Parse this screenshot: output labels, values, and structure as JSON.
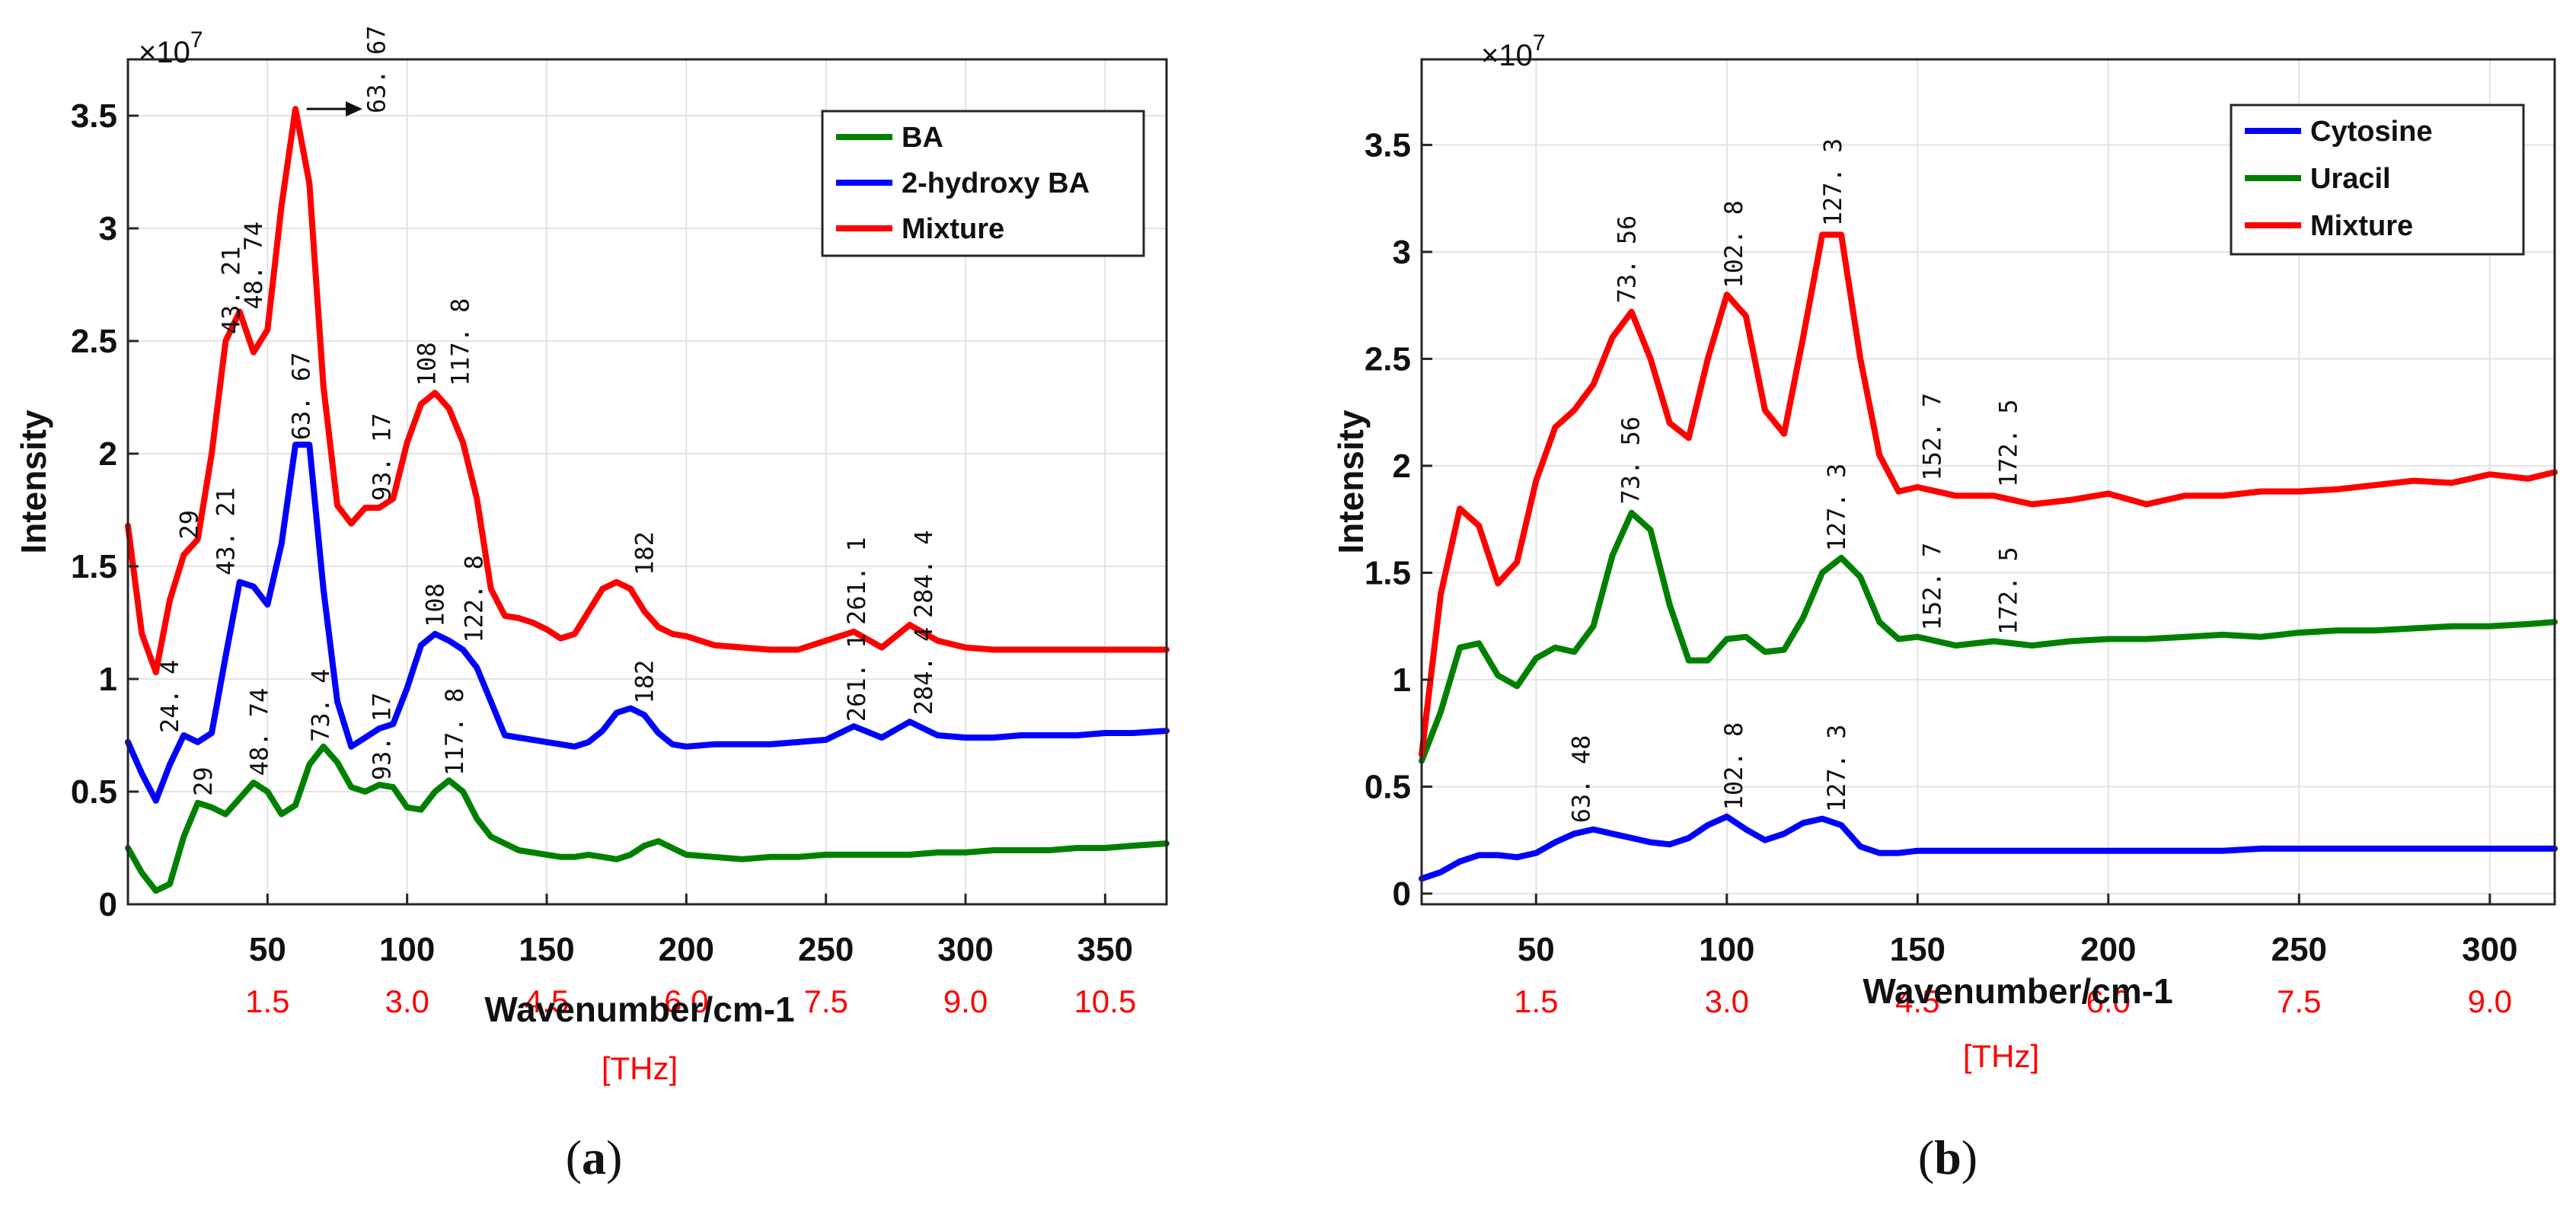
{
  "chart_data": [
    {
      "type": "line",
      "panel": "a",
      "caption_label": "a",
      "xlabel": "Wavenumber/cm-1",
      "ylabel": "Intensity",
      "y_multiplier": "×10",
      "y_exponent": "7",
      "secondary_x_unit": "[THz]",
      "xlim": [
        0,
        372
      ],
      "ylim": [
        0,
        3.75
      ],
      "grid": true,
      "legend_position": "top-right",
      "x_ticks": [
        {
          "value": 50,
          "label": "50"
        },
        {
          "value": 100,
          "label": "100"
        },
        {
          "value": 150,
          "label": "150"
        },
        {
          "value": 200,
          "label": "200"
        },
        {
          "value": 250,
          "label": "250"
        },
        {
          "value": 300,
          "label": "300"
        },
        {
          "value": 350,
          "label": "350"
        }
      ],
      "y_ticks": [
        {
          "value": 0,
          "label": "0"
        },
        {
          "value": 0.5,
          "label": "0.5"
        },
        {
          "value": 1,
          "label": "1"
        },
        {
          "value": 1.5,
          "label": "1.5"
        },
        {
          "value": 2,
          "label": "2"
        },
        {
          "value": 2.5,
          "label": "2.5"
        },
        {
          "value": 3,
          "label": "3"
        },
        {
          "value": 3.5,
          "label": "3.5"
        }
      ],
      "thz_ticks": [
        {
          "value": 50,
          "label": "1.5"
        },
        {
          "value": 100,
          "label": "3.0"
        },
        {
          "value": 150,
          "label": "4.5"
        },
        {
          "value": 200,
          "label": "6.0"
        },
        {
          "value": 250,
          "label": "7.5"
        },
        {
          "value": 300,
          "label": "9.0"
        },
        {
          "value": 350,
          "label": "10.5"
        }
      ],
      "series": [
        {
          "name": "BA",
          "color": "#008000",
          "x": [
            0,
            5,
            10,
            15,
            20,
            25,
            30,
            35,
            40,
            45,
            50,
            55,
            60,
            65,
            70,
            75,
            80,
            85,
            90,
            95,
            100,
            105,
            110,
            115,
            120,
            125,
            130,
            135,
            140,
            145,
            150,
            155,
            160,
            165,
            170,
            175,
            180,
            185,
            190,
            195,
            200,
            210,
            220,
            230,
            240,
            250,
            260,
            270,
            280,
            290,
            300,
            310,
            320,
            330,
            340,
            350,
            360,
            372
          ],
          "y": [
            0.25,
            0.14,
            0.06,
            0.09,
            0.3,
            0.45,
            0.43,
            0.4,
            0.47,
            0.54,
            0.5,
            0.4,
            0.44,
            0.62,
            0.7,
            0.63,
            0.52,
            0.5,
            0.53,
            0.52,
            0.43,
            0.42,
            0.5,
            0.55,
            0.5,
            0.38,
            0.3,
            0.27,
            0.24,
            0.23,
            0.22,
            0.21,
            0.21,
            0.22,
            0.21,
            0.2,
            0.22,
            0.26,
            0.28,
            0.25,
            0.22,
            0.21,
            0.2,
            0.21,
            0.21,
            0.22,
            0.22,
            0.22,
            0.22,
            0.23,
            0.23,
            0.24,
            0.24,
            0.24,
            0.25,
            0.25,
            0.26,
            0.27
          ]
        },
        {
          "name": "2-hydroxy BA",
          "color": "#0000ff",
          "x": [
            0,
            5,
            10,
            15,
            20,
            25,
            30,
            35,
            40,
            45,
            50,
            55,
            60,
            65,
            70,
            75,
            80,
            85,
            90,
            95,
            100,
            105,
            110,
            115,
            120,
            125,
            130,
            135,
            140,
            145,
            150,
            155,
            160,
            165,
            170,
            175,
            180,
            185,
            190,
            195,
            200,
            210,
            220,
            230,
            240,
            250,
            260,
            270,
            280,
            290,
            300,
            310,
            320,
            330,
            340,
            350,
            360,
            372
          ],
          "y": [
            0.72,
            0.58,
            0.46,
            0.62,
            0.75,
            0.72,
            0.76,
            1.1,
            1.43,
            1.41,
            1.33,
            1.6,
            2.04,
            2.04,
            1.4,
            0.9,
            0.7,
            0.74,
            0.78,
            0.8,
            0.96,
            1.15,
            1.2,
            1.17,
            1.13,
            1.05,
            0.9,
            0.75,
            0.74,
            0.73,
            0.72,
            0.71,
            0.7,
            0.72,
            0.77,
            0.85,
            0.87,
            0.84,
            0.76,
            0.71,
            0.7,
            0.71,
            0.71,
            0.71,
            0.72,
            0.73,
            0.79,
            0.74,
            0.81,
            0.75,
            0.74,
            0.74,
            0.75,
            0.75,
            0.75,
            0.76,
            0.76,
            0.77
          ]
        },
        {
          "name": "Mixture",
          "color": "#ff0000",
          "x": [
            0,
            5,
            10,
            15,
            20,
            25,
            30,
            35,
            40,
            45,
            50,
            55,
            60,
            65,
            70,
            75,
            80,
            85,
            90,
            95,
            100,
            105,
            110,
            115,
            120,
            125,
            130,
            135,
            140,
            145,
            150,
            155,
            160,
            165,
            170,
            175,
            180,
            185,
            190,
            195,
            200,
            210,
            220,
            230,
            240,
            250,
            260,
            270,
            280,
            290,
            300,
            310,
            320,
            330,
            340,
            350,
            360,
            372
          ],
          "y": [
            1.68,
            1.2,
            1.03,
            1.35,
            1.55,
            1.62,
            2.0,
            2.5,
            2.63,
            2.45,
            2.55,
            3.1,
            3.53,
            3.2,
            2.3,
            1.77,
            1.69,
            1.76,
            1.76,
            1.8,
            2.05,
            2.22,
            2.27,
            2.2,
            2.05,
            1.8,
            1.4,
            1.28,
            1.27,
            1.25,
            1.22,
            1.18,
            1.2,
            1.3,
            1.4,
            1.43,
            1.4,
            1.3,
            1.23,
            1.2,
            1.19,
            1.15,
            1.14,
            1.13,
            1.13,
            1.17,
            1.21,
            1.14,
            1.24,
            1.17,
            1.14,
            1.13,
            1.13,
            1.13,
            1.13,
            1.13,
            1.13,
            1.13
          ]
        }
      ],
      "annotations": [
        {
          "text": "63. 67",
          "x": 92,
          "y": 3.51
        },
        {
          "text": "43. 21",
          "x": 40,
          "y": 2.53
        },
        {
          "text": "48. 74",
          "x": 48,
          "y": 2.64
        },
        {
          "text": "29",
          "x": 25,
          "y": 1.62
        },
        {
          "text": "24. 4",
          "x": 18,
          "y": 0.76
        },
        {
          "text": "43. 21",
          "x": 38,
          "y": 1.46
        },
        {
          "text": "63. 67",
          "x": 65,
          "y": 2.06
        },
        {
          "text": "108",
          "x": 110,
          "y": 2.3
        },
        {
          "text": "117. 8",
          "x": 122,
          "y": 2.3
        },
        {
          "text": "93. 17",
          "x": 94,
          "y": 1.79
        },
        {
          "text": "182",
          "x": 188,
          "y": 1.46
        },
        {
          "text": "108",
          "x": 113,
          "y": 1.23
        },
        {
          "text": "122. 8",
          "x": 127,
          "y": 1.16
        },
        {
          "text": "261. 1",
          "x": 264,
          "y": 1.24
        },
        {
          "text": "284. 4",
          "x": 288,
          "y": 1.27
        },
        {
          "text": "182",
          "x": 188,
          "y": 0.89
        },
        {
          "text": "261. 1",
          "x": 264,
          "y": 0.81
        },
        {
          "text": "284. 4",
          "x": 288,
          "y": 0.84
        },
        {
          "text": "29",
          "x": 30,
          "y": 0.48
        },
        {
          "text": "48. 74",
          "x": 50,
          "y": 0.57
        },
        {
          "text": "73. 4",
          "x": 72,
          "y": 0.72
        },
        {
          "text": "93. 17",
          "x": 94,
          "y": 0.55
        },
        {
          "text": "117. 8",
          "x": 120,
          "y": 0.57
        }
      ],
      "arrow": {
        "x1": 64,
        "x2": 84,
        "y": 3.53
      }
    },
    {
      "type": "line",
      "panel": "b",
      "caption_label": "b",
      "xlabel": "Wavenumber/cm-1",
      "ylabel": "Intensity",
      "y_multiplier": "×10",
      "y_exponent": "7",
      "secondary_x_unit": "[THz]",
      "xlim": [
        20,
        317
      ],
      "ylim": [
        -0.05,
        3.9
      ],
      "grid": true,
      "legend_position": "top-right",
      "x_ticks": [
        {
          "value": 50,
          "label": "50"
        },
        {
          "value": 100,
          "label": "100"
        },
        {
          "value": 150,
          "label": "150"
        },
        {
          "value": 200,
          "label": "200"
        },
        {
          "value": 250,
          "label": "250"
        },
        {
          "value": 300,
          "label": "300"
        }
      ],
      "y_ticks": [
        {
          "value": 0,
          "label": "0"
        },
        {
          "value": 0.5,
          "label": "0.5"
        },
        {
          "value": 1,
          "label": "1"
        },
        {
          "value": 1.5,
          "label": "1.5"
        },
        {
          "value": 2,
          "label": "2"
        },
        {
          "value": 2.5,
          "label": "2.5"
        },
        {
          "value": 3,
          "label": "3"
        },
        {
          "value": 3.5,
          "label": "3.5"
        }
      ],
      "thz_ticks": [
        {
          "value": 50,
          "label": "1.5"
        },
        {
          "value": 100,
          "label": "3.0"
        },
        {
          "value": 150,
          "label": "4.5"
        },
        {
          "value": 200,
          "label": "6.0"
        },
        {
          "value": 250,
          "label": "7.5"
        },
        {
          "value": 300,
          "label": "9.0"
        }
      ],
      "series": [
        {
          "name": "Cytosine",
          "color": "#0000ff",
          "x": [
            20,
            25,
            30,
            35,
            40,
            45,
            50,
            55,
            60,
            65,
            70,
            75,
            80,
            85,
            90,
            95,
            100,
            105,
            110,
            115,
            120,
            125,
            130,
            135,
            140,
            145,
            150,
            160,
            170,
            180,
            190,
            200,
            210,
            220,
            230,
            240,
            250,
            260,
            270,
            280,
            290,
            300,
            310,
            317
          ],
          "y": [
            0.07,
            0.1,
            0.15,
            0.18,
            0.18,
            0.17,
            0.19,
            0.24,
            0.28,
            0.3,
            0.28,
            0.26,
            0.24,
            0.23,
            0.26,
            0.32,
            0.36,
            0.3,
            0.25,
            0.28,
            0.33,
            0.35,
            0.32,
            0.22,
            0.19,
            0.19,
            0.2,
            0.2,
            0.2,
            0.2,
            0.2,
            0.2,
            0.2,
            0.2,
            0.2,
            0.21,
            0.21,
            0.21,
            0.21,
            0.21,
            0.21,
            0.21,
            0.21,
            0.21
          ]
        },
        {
          "name": "Uracil",
          "color": "#008000",
          "x": [
            20,
            25,
            30,
            35,
            40,
            45,
            50,
            55,
            60,
            65,
            70,
            75,
            80,
            85,
            90,
            95,
            100,
            105,
            110,
            115,
            120,
            125,
            130,
            135,
            140,
            145,
            150,
            160,
            170,
            180,
            190,
            200,
            210,
            220,
            230,
            240,
            250,
            260,
            270,
            280,
            290,
            300,
            310,
            317
          ],
          "y": [
            0.62,
            0.85,
            1.15,
            1.17,
            1.02,
            0.97,
            1.1,
            1.15,
            1.13,
            1.25,
            1.58,
            1.78,
            1.7,
            1.35,
            1.09,
            1.09,
            1.19,
            1.2,
            1.13,
            1.14,
            1.29,
            1.5,
            1.57,
            1.48,
            1.27,
            1.19,
            1.2,
            1.16,
            1.18,
            1.16,
            1.18,
            1.19,
            1.19,
            1.2,
            1.21,
            1.2,
            1.22,
            1.23,
            1.23,
            1.24,
            1.25,
            1.25,
            1.26,
            1.27
          ]
        },
        {
          "name": "Mixture",
          "color": "#ff0000",
          "x": [
            20,
            25,
            30,
            35,
            40,
            45,
            50,
            55,
            60,
            65,
            70,
            75,
            80,
            85,
            90,
            95,
            100,
            105,
            110,
            115,
            120,
            125,
            130,
            135,
            140,
            145,
            150,
            160,
            170,
            180,
            190,
            200,
            210,
            220,
            230,
            240,
            250,
            260,
            270,
            280,
            290,
            300,
            310,
            317
          ],
          "y": [
            0.65,
            1.4,
            1.8,
            1.72,
            1.45,
            1.55,
            1.93,
            2.18,
            2.26,
            2.38,
            2.6,
            2.72,
            2.5,
            2.2,
            2.13,
            2.5,
            2.8,
            2.7,
            2.26,
            2.15,
            2.6,
            3.08,
            3.08,
            2.5,
            2.05,
            1.88,
            1.9,
            1.86,
            1.86,
            1.82,
            1.84,
            1.87,
            1.82,
            1.86,
            1.86,
            1.88,
            1.88,
            1.89,
            1.91,
            1.93,
            1.92,
            1.96,
            1.94,
            1.97
          ]
        }
      ],
      "annotations": [
        {
          "text": "73. 56",
          "x": 76,
          "y": 2.76
        },
        {
          "text": "102. 8",
          "x": 104,
          "y": 2.83
        },
        {
          "text": "127. 3",
          "x": 130,
          "y": 3.12
        },
        {
          "text": "152. 7",
          "x": 156,
          "y": 1.93
        },
        {
          "text": "172. 5",
          "x": 176,
          "y": 1.9
        },
        {
          "text": "73. 56",
          "x": 77,
          "y": 1.82
        },
        {
          "text": "127. 3",
          "x": 131,
          "y": 1.6
        },
        {
          "text": "152. 7",
          "x": 156,
          "y": 1.23
        },
        {
          "text": "172. 5",
          "x": 176,
          "y": 1.21
        },
        {
          "text": "63. 48",
          "x": 64,
          "y": 0.33
        },
        {
          "text": "102. 8",
          "x": 104,
          "y": 0.39
        },
        {
          "text": "127. 3",
          "x": 131,
          "y": 0.38
        }
      ]
    }
  ]
}
